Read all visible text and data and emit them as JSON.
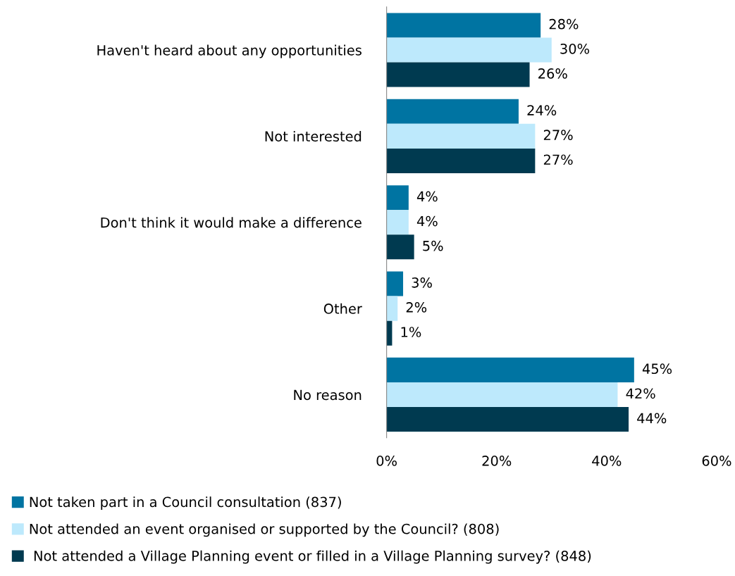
{
  "chart_data": {
    "type": "bar",
    "orientation": "horizontal",
    "categories": [
      "Haven't heard about any opportunities",
      "Not interested",
      "Don't think it would make a difference",
      "Other",
      "No reason"
    ],
    "series": [
      {
        "name": "Not taken part in a Council consultation (837)",
        "color": "#0074a2",
        "values": [
          28,
          24,
          4,
          3,
          45
        ],
        "value_labels": [
          "28%",
          "24%",
          "4%",
          "3%",
          "45%"
        ]
      },
      {
        "name": "Not attended an event organised or supported by the Council? (808)",
        "color": "#bde9fc",
        "values": [
          30,
          27,
          4,
          2,
          42
        ],
        "value_labels": [
          "30%",
          "27%",
          "4%",
          "2%",
          "42%"
        ]
      },
      {
        "name": " Not attended a Village Planning event or filled in a Village Planning survey? (848)",
        "color": "#003a50",
        "values": [
          26,
          27,
          5,
          1,
          44
        ],
        "value_labels": [
          "26%",
          "27%",
          "5%",
          "1%",
          "44%"
        ]
      }
    ],
    "xlim": [
      0,
      60
    ],
    "xticks": [
      {
        "value": 0,
        "label": "0%"
      },
      {
        "value": 20,
        "label": "20%"
      },
      {
        "value": 40,
        "label": "40%"
      },
      {
        "value": 60,
        "label": "60%"
      }
    ],
    "grid": false,
    "legend": "bottom left"
  }
}
